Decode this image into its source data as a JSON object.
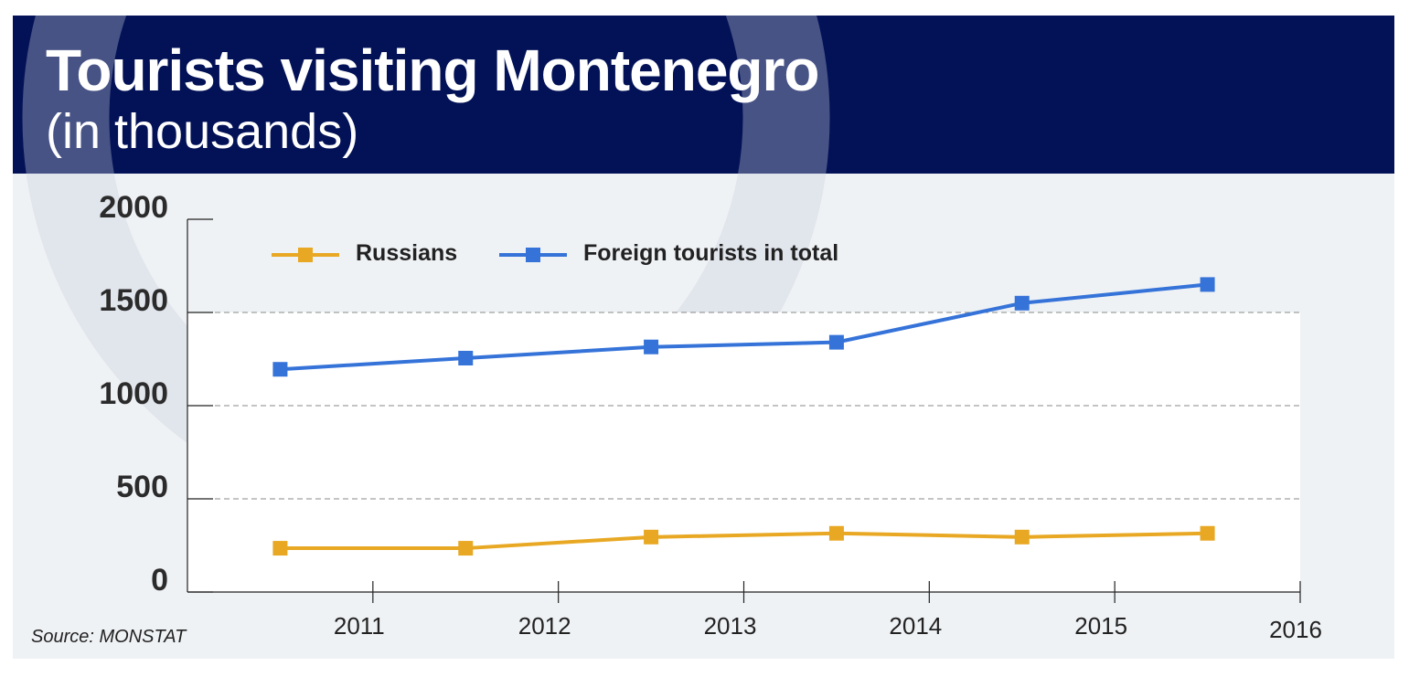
{
  "header": {
    "title": "Tourists visiting Montenegro",
    "subtitle": "(in thousands)"
  },
  "source": "Source: MONSTAT",
  "colors": {
    "header_bg": "#031257",
    "russians": "#e8a823",
    "foreign_total": "#3573d9"
  },
  "chart_data": {
    "type": "line",
    "title": "Tourists visiting Montenegro",
    "subtitle": "(in thousands)",
    "x": [
      2010.5,
      2011.5,
      2012.5,
      2013.5,
      2014.5,
      2015.5
    ],
    "xlim": [
      2010,
      2016
    ],
    "x_ticks": [
      "2011",
      "2012",
      "2013",
      "2014",
      "2015",
      "2016"
    ],
    "ylim": [
      0,
      2000
    ],
    "y_ticks": [
      "0",
      "500",
      "1000",
      "1500",
      "2000"
    ],
    "grid": "horizontal dashed",
    "legend": "top-left",
    "series": [
      {
        "name": "Russians",
        "color": "#e8a823",
        "values": [
          235,
          235,
          295,
          315,
          295,
          315
        ]
      },
      {
        "name": "Foreign tourists in total",
        "color": "#3573d9",
        "values": [
          1195,
          1255,
          1315,
          1340,
          1550,
          1650
        ]
      }
    ]
  }
}
